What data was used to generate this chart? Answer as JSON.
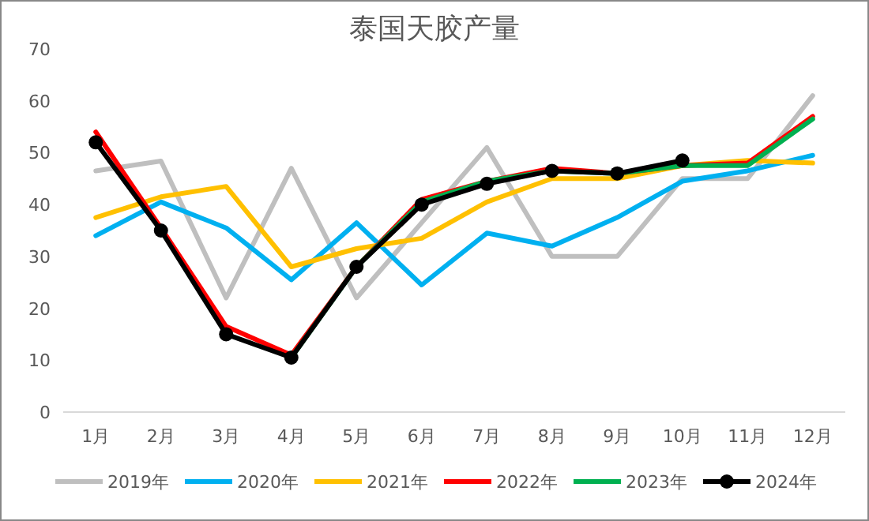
{
  "chart_data": {
    "type": "line",
    "title": "泰国天胶产量",
    "categories": [
      "1月",
      "2月",
      "3月",
      "4月",
      "5月",
      "6月",
      "7月",
      "8月",
      "9月",
      "10月",
      "11月",
      "12月"
    ],
    "ylim": [
      0,
      70
    ],
    "yticks": [
      0,
      10,
      20,
      30,
      40,
      50,
      60,
      70
    ],
    "grid": false,
    "legend": "bottom",
    "series": [
      {
        "name": "2019年",
        "color": "#bfbfbf",
        "marker": "none",
        "values": [
          46.5,
          48.4,
          22,
          47,
          22,
          36.5,
          51,
          30,
          30,
          45,
          45,
          61
        ]
      },
      {
        "name": "2020年",
        "color": "#00b0f0",
        "marker": "none",
        "values": [
          34,
          40.5,
          35.5,
          25.5,
          36.5,
          24.5,
          34.5,
          32,
          37.5,
          44.5,
          46.5,
          49.5
        ]
      },
      {
        "name": "2021年",
        "color": "#ffc000",
        "marker": "none",
        "values": [
          37.5,
          41.5,
          43.5,
          28,
          31.5,
          33.5,
          40.5,
          45,
          45,
          47.5,
          48.5,
          48
        ]
      },
      {
        "name": "2022年",
        "color": "#ff0000",
        "marker": "none",
        "values": [
          54,
          35.5,
          16.5,
          11,
          28,
          41,
          44.5,
          47,
          46,
          47.5,
          48,
          57
        ]
      },
      {
        "name": "2023年",
        "color": "#00b050",
        "marker": "none",
        "values": [
          null,
          null,
          null,
          10.5,
          28,
          40.5,
          44.5,
          46.5,
          46,
          47.5,
          47.5,
          56.5
        ]
      },
      {
        "name": "2024年",
        "color": "#000000",
        "marker": "circle",
        "values": [
          52,
          35,
          15,
          10.5,
          28,
          40,
          44,
          46.5,
          46,
          48.5,
          null,
          null
        ]
      }
    ]
  }
}
